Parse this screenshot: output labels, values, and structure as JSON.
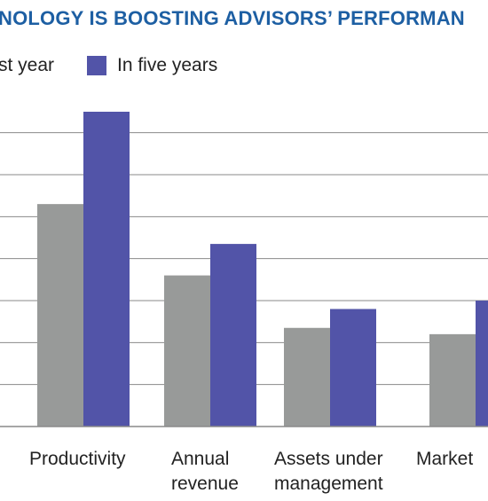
{
  "header": {
    "title": "NOLOGY IS BOOSTING ADVISORS’ PERFORMAN"
  },
  "legend": [
    {
      "label": "st year",
      "color": "#989a99"
    },
    {
      "label": "In five years",
      "color": "#5254a8"
    }
  ],
  "chart_data": {
    "type": "bar",
    "title": "NOLOGY IS BOOSTING ADVISORS’ PERFORMAN",
    "categories": [
      [
        "Productivity"
      ],
      [
        "Annual",
        "revenue"
      ],
      [
        "Assets under",
        "management"
      ],
      [
        "Market"
      ]
    ],
    "series": [
      {
        "name": "st year",
        "color": "#989a99",
        "values": [
          53,
          36,
          23.5,
          22
        ]
      },
      {
        "name": "In five years",
        "color": "#5254a8",
        "values": [
          75,
          43.5,
          28,
          30
        ]
      }
    ],
    "ylim": [
      0,
      75
    ],
    "grid": true
  }
}
